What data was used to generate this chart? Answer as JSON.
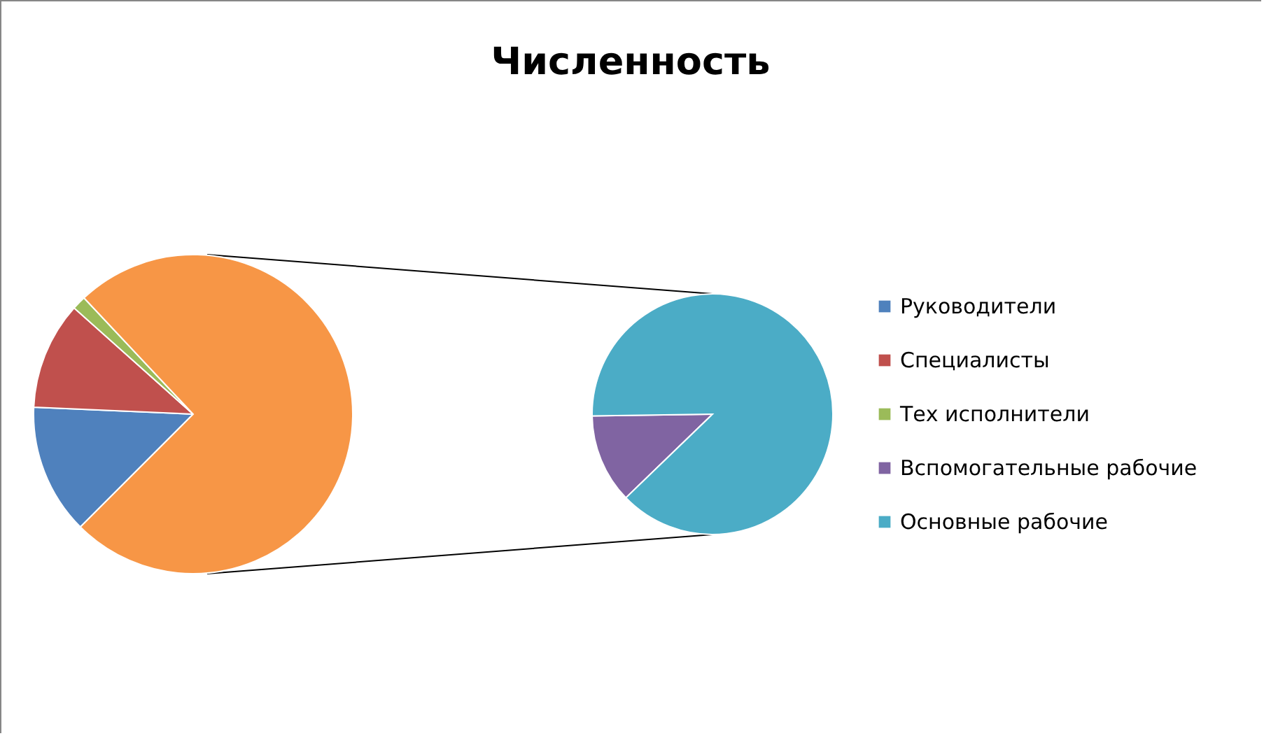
{
  "chart_data": [
    {
      "type": "pie",
      "title": "Численность",
      "legend": "right",
      "categories": [
        "Руководители",
        "Специалисты",
        "Тех исполнители",
        null
      ],
      "values": [
        13.2,
        10.9,
        1.4,
        74.5
      ],
      "colors": [
        "#4f81bd",
        "#c0504d",
        "#9bbb59",
        "#f79646"
      ]
    },
    {
      "type": "pie",
      "legend": "right",
      "categories": [
        "Вспомогательные рабочие",
        "Основные рабочие"
      ],
      "values": [
        12,
        88
      ],
      "colors": [
        "#8064a2",
        "#4bacc6"
      ]
    }
  ]
}
